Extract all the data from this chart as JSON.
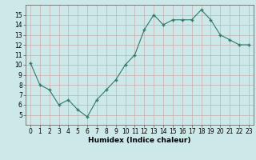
{
  "x": [
    0,
    1,
    2,
    3,
    4,
    5,
    6,
    7,
    8,
    9,
    10,
    11,
    12,
    13,
    14,
    15,
    16,
    17,
    18,
    19,
    20,
    21,
    22,
    23
  ],
  "y": [
    10.2,
    8.0,
    7.5,
    6.0,
    6.5,
    5.5,
    4.8,
    6.5,
    7.5,
    8.5,
    10.0,
    11.0,
    13.5,
    15.0,
    14.0,
    14.5,
    14.5,
    14.5,
    15.5,
    14.5,
    13.0,
    12.5,
    12.0,
    12.0
  ],
  "xlabel": "Humidex (Indice chaleur)",
  "ylim": [
    4,
    16
  ],
  "xlim": [
    -0.5,
    23.5
  ],
  "yticks": [
    5,
    6,
    7,
    8,
    9,
    10,
    11,
    12,
    13,
    14,
    15
  ],
  "xticks": [
    0,
    1,
    2,
    3,
    4,
    5,
    6,
    7,
    8,
    9,
    10,
    11,
    12,
    13,
    14,
    15,
    16,
    17,
    18,
    19,
    20,
    21,
    22,
    23
  ],
  "line_color": "#2d7a6a",
  "marker_color": "#2d7a6a",
  "bg_color": "#cce8e8",
  "grid_color": "#b8d8d8",
  "tick_fontsize": 5.5,
  "xlabel_fontsize": 6.5
}
